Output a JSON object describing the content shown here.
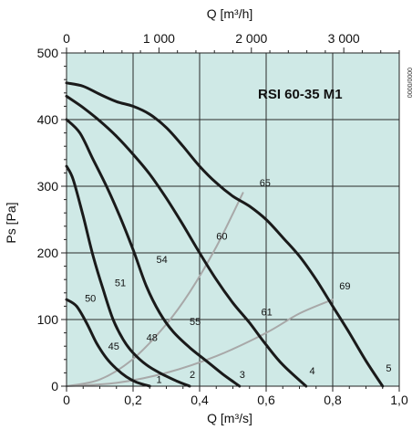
{
  "chart_data": {
    "type": "line",
    "title": "RSI 60-35 M1",
    "side_reference": "0000/0000",
    "xlabel": "Q [m³/s]",
    "x2label": "Q [m³/h]",
    "ylabel": "Ps [Pa]",
    "xlim": [
      0,
      1.0
    ],
    "ylim": [
      0,
      500
    ],
    "x2lim": [
      0,
      3600
    ],
    "xticks": [
      "0",
      "0,2",
      "0,4",
      "0,6",
      "0,8",
      "1,0"
    ],
    "xtick_values": [
      0,
      0.2,
      0.4,
      0.6,
      0.8,
      1.0
    ],
    "yticks": [
      "0",
      "100",
      "200",
      "300",
      "400",
      "500"
    ],
    "ytick_values": [
      0,
      100,
      200,
      300,
      400,
      500
    ],
    "x2ticks": [
      "0",
      "1 000",
      "2 000",
      "3 000"
    ],
    "x2tick_values": [
      0,
      1000,
      2000,
      3000
    ],
    "grid": true,
    "plot_background": "#cfe9e6",
    "grid_color": "#2a2a2a",
    "curve_color": "#1a1a1a",
    "efficiency_color": "#a8a8a8",
    "series": [
      {
        "name": "1",
        "kind": "fan-curve",
        "x": [
          0.0,
          0.03,
          0.06,
          0.09,
          0.12,
          0.15,
          0.18,
          0.21,
          0.25
        ],
        "y": [
          130,
          120,
          95,
          65,
          42,
          26,
          14,
          6,
          0
        ]
      },
      {
        "name": "2",
        "kind": "fan-curve",
        "x": [
          0.0,
          0.02,
          0.05,
          0.08,
          0.11,
          0.14,
          0.17,
          0.2,
          0.24,
          0.28,
          0.33,
          0.37
        ],
        "y": [
          330,
          310,
          255,
          195,
          145,
          100,
          70,
          50,
          32,
          20,
          8,
          0
        ]
      },
      {
        "name": "3",
        "kind": "fan-curve",
        "x": [
          0.0,
          0.04,
          0.08,
          0.12,
          0.16,
          0.2,
          0.24,
          0.28,
          0.32,
          0.37,
          0.42,
          0.47,
          0.52
        ],
        "y": [
          400,
          380,
          340,
          300,
          255,
          205,
          150,
          110,
          82,
          58,
          38,
          18,
          0
        ]
      },
      {
        "name": "4",
        "kind": "fan-curve",
        "x": [
          0.0,
          0.05,
          0.1,
          0.15,
          0.2,
          0.25,
          0.3,
          0.35,
          0.4,
          0.45,
          0.5,
          0.55,
          0.6,
          0.65,
          0.72
        ],
        "y": [
          435,
          418,
          398,
          375,
          348,
          318,
          282,
          242,
          200,
          160,
          125,
          95,
          62,
          32,
          0
        ]
      },
      {
        "name": "5",
        "kind": "fan-curve",
        "x": [
          0.0,
          0.05,
          0.1,
          0.15,
          0.2,
          0.25,
          0.3,
          0.35,
          0.4,
          0.45,
          0.5,
          0.55,
          0.6,
          0.65,
          0.7,
          0.75,
          0.8,
          0.85,
          0.9,
          0.95
        ],
        "y": [
          455,
          450,
          438,
          427,
          420,
          408,
          388,
          360,
          330,
          305,
          285,
          270,
          250,
          223,
          195,
          160,
          120,
          80,
          38,
          0
        ]
      },
      {
        "name": "",
        "kind": "system-curve",
        "x": [
          0.0,
          0.1,
          0.2,
          0.3,
          0.37,
          0.45,
          0.53
        ],
        "y": [
          0,
          10,
          41,
          93,
          141,
          209,
          290
        ]
      },
      {
        "name": "",
        "kind": "system-curve",
        "x": [
          0.0,
          0.15,
          0.3,
          0.45,
          0.6,
          0.7,
          0.8
        ],
        "y": [
          0,
          5,
          20,
          45,
          80,
          109,
          130
        ]
      }
    ],
    "annotations": [
      {
        "text": "50",
        "x": 0.055,
        "y": 127
      },
      {
        "text": "51",
        "x": 0.145,
        "y": 150
      },
      {
        "text": "54",
        "x": 0.27,
        "y": 185
      },
      {
        "text": "60",
        "x": 0.45,
        "y": 220
      },
      {
        "text": "65",
        "x": 0.58,
        "y": 300
      },
      {
        "text": "45",
        "x": 0.125,
        "y": 55
      },
      {
        "text": "48",
        "x": 0.24,
        "y": 68
      },
      {
        "text": "55",
        "x": 0.37,
        "y": 92
      },
      {
        "text": "61",
        "x": 0.585,
        "y": 106
      },
      {
        "text": "69",
        "x": 0.82,
        "y": 145
      },
      {
        "text": "1",
        "x": 0.27,
        "y": 5
      },
      {
        "text": "2",
        "x": 0.37,
        "y": 12
      },
      {
        "text": "3",
        "x": 0.52,
        "y": 12
      },
      {
        "text": "4",
        "x": 0.73,
        "y": 18
      },
      {
        "text": "5",
        "x": 0.96,
        "y": 22
      }
    ]
  }
}
